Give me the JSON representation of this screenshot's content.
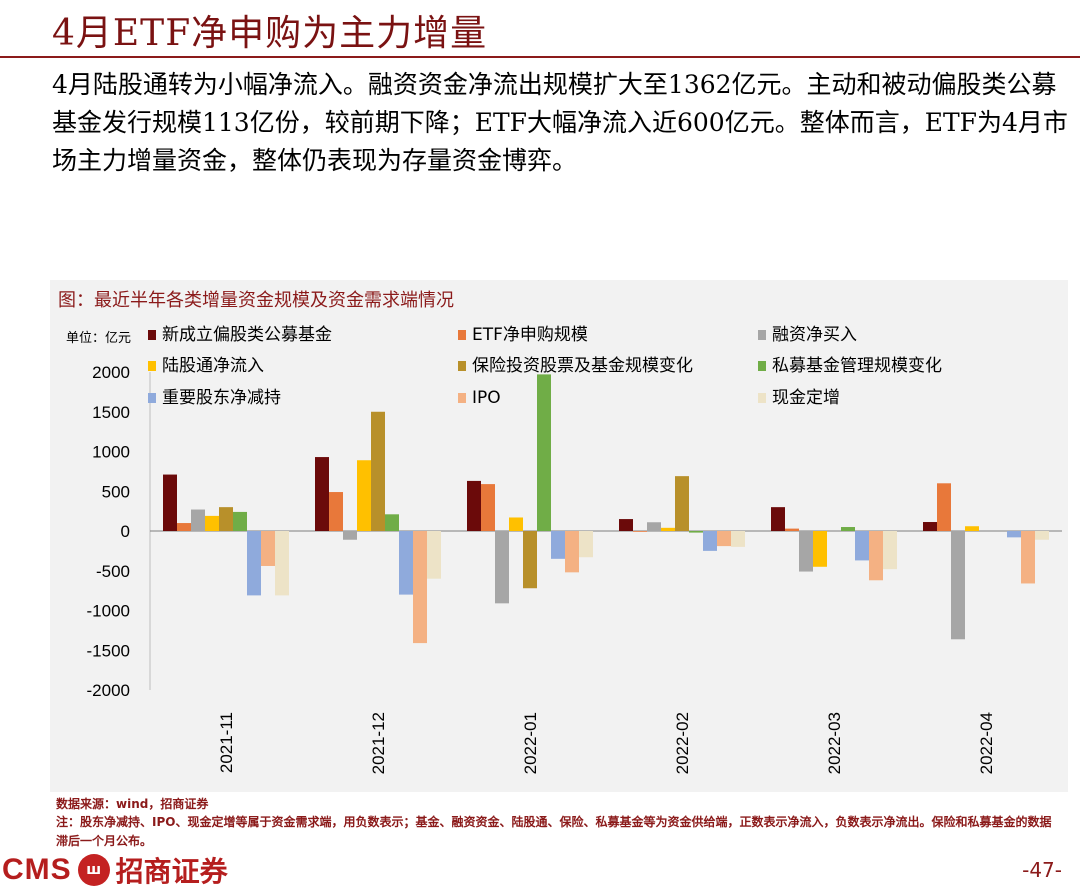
{
  "slide": {
    "title": "4月ETF净申购为主力增量",
    "body": "4月陆股通转为小幅净流入。融资资金净流出规模扩大至1362亿元。主动和被动偏股类公募基金发行规模113亿份，较前期下降；ETF大幅净流入近600亿元。整体而言，ETF为4月市场主力增量资金，整体仍表现为存量资金博弈。",
    "source": "数据来源：wind，招商证券",
    "note": "注：股东净减持、IPO、现金定增等属于资金需求端，用负数表示；基金、融资资金、陆股通、保险、私募基金等为资金供给端，正数表示净流入，负数表示净流出。保险和私募基金的数据滞后一个月公布。",
    "logo_cms": "CMS",
    "logo_cn": "招商证券",
    "page_number": "-47-"
  },
  "colors": {
    "accent": "#8b1a1a",
    "panel_bg": "#f2f2f2"
  },
  "chart_data": {
    "type": "bar",
    "title": "图：最近半年各类增量资金规模及资金需求端情况",
    "unit_label": "单位：亿元",
    "ylim": [
      -2000,
      2000
    ],
    "yticks": [
      2000,
      1500,
      1000,
      500,
      0,
      -500,
      -1000,
      -1500,
      -2000
    ],
    "categories": [
      "2021-11",
      "2021-12",
      "2022-01",
      "2022-02",
      "2022-03",
      "2022-04"
    ],
    "series": [
      {
        "name": "新成立偏股类公募基金",
        "color": "#6b0a0a",
        "values": [
          710,
          930,
          630,
          150,
          300,
          113
        ]
      },
      {
        "name": "ETF净申购规模",
        "color": "#e8783a",
        "values": [
          100,
          490,
          590,
          -10,
          30,
          600
        ]
      },
      {
        "name": "融资净买入",
        "color": "#a6a6a6",
        "values": [
          270,
          -110,
          -910,
          110,
          -510,
          -1362
        ]
      },
      {
        "name": "陆股通净流入",
        "color": "#ffc000",
        "values": [
          190,
          890,
          170,
          40,
          -450,
          60
        ]
      },
      {
        "name": "保险投资股票及基金规模变化",
        "color": "#b8902a",
        "values": [
          300,
          1500,
          -720,
          690,
          0,
          0
        ]
      },
      {
        "name": "私募基金管理规模变化",
        "color": "#70ad47",
        "values": [
          240,
          210,
          1970,
          -20,
          50,
          0
        ]
      },
      {
        "name": "重要股东净减持",
        "color": "#8faadc",
        "values": [
          -810,
          -800,
          -350,
          -250,
          -370,
          -80
        ]
      },
      {
        "name": "IPO",
        "color": "#f4b183",
        "values": [
          -440,
          -1410,
          -520,
          -190,
          -620,
          -660
        ]
      },
      {
        "name": "现金定增",
        "color": "#ede3c7",
        "values": [
          -810,
          -600,
          -330,
          -200,
          -480,
          -110
        ]
      }
    ]
  }
}
